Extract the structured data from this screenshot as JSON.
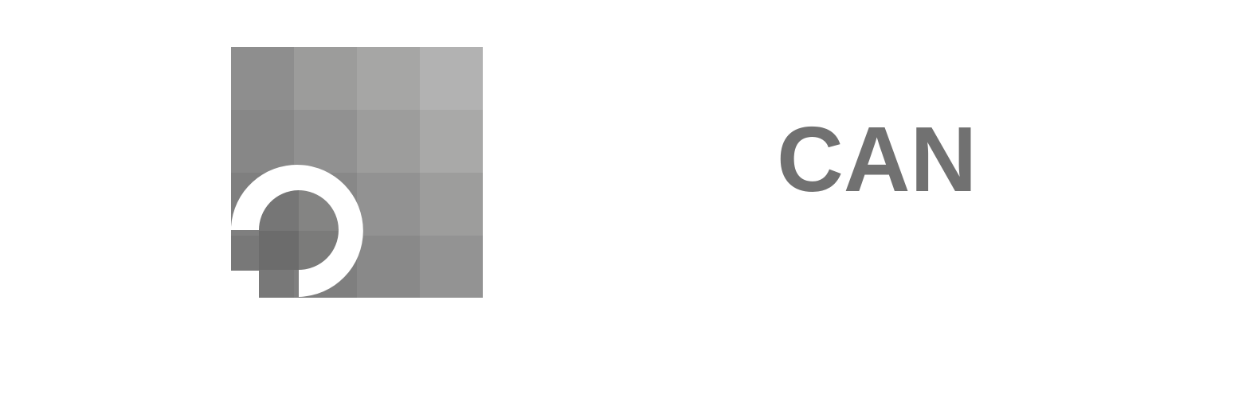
{
  "logo": {
    "icon_name": "pixel-grid-ring-icon",
    "wordmark": "CAN",
    "text_color": "#717171",
    "tile_colors": [
      [
        "#8e8e8e",
        "#9c9c9b",
        "#a6a6a5",
        "#b2b2b2"
      ],
      [
        "#878787",
        "#919191",
        "#9d9d9c",
        "#a9a9a8"
      ],
      [
        "#7f7f7f",
        "#888888",
        "#929292",
        "#9d9d9c"
      ],
      [
        "#787878",
        "#7f7f7f",
        "#898989",
        "#939393"
      ]
    ],
    "inner_tile_colors": [
      [
        "#767676",
        "#848483"
      ],
      [
        "#6c6c6c",
        "#7b7b7a"
      ]
    ]
  }
}
